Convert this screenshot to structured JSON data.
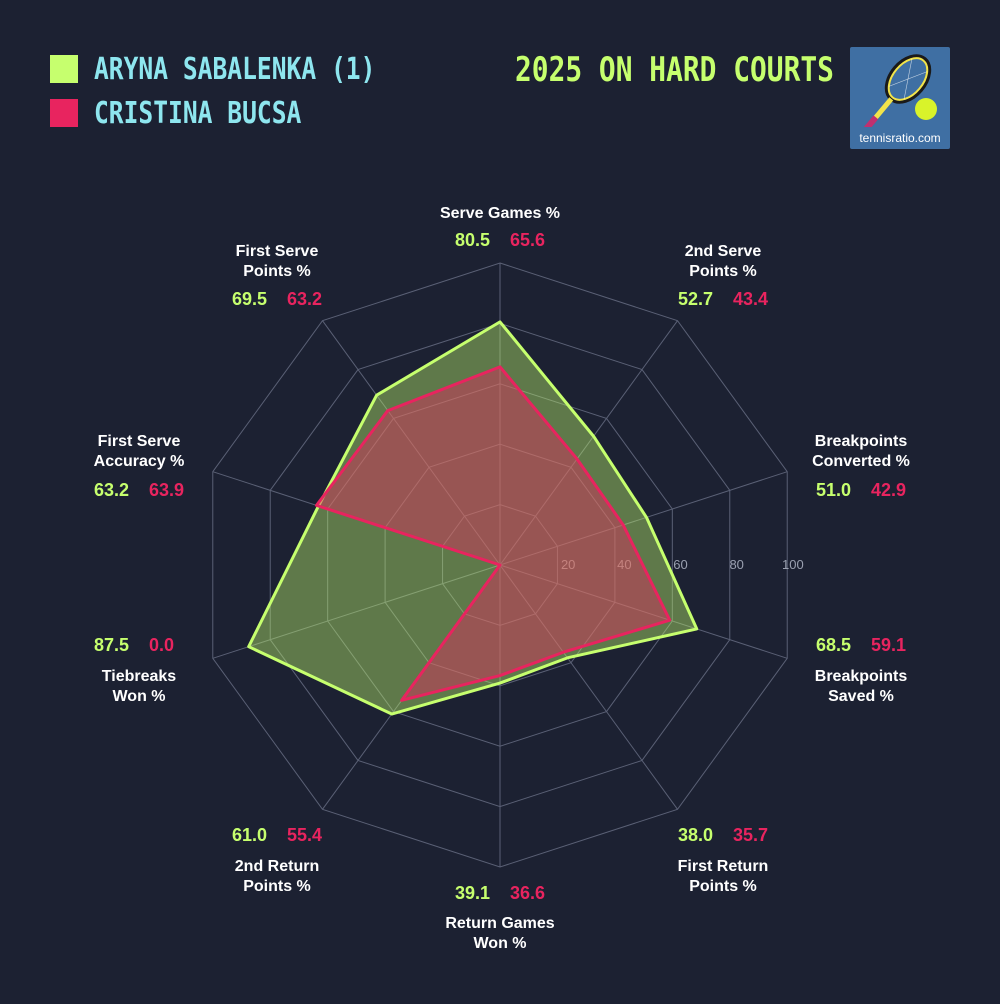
{
  "title": "2025 ON HARD COURTS",
  "logo": {
    "text": "tennisratio.com",
    "icon": "racket-ball-icon"
  },
  "colors": {
    "background": "#1c2132",
    "player1": "#c6ff6e",
    "player2": "#e8245f",
    "legend_text": "#8ee6ef",
    "grid": "#5a6075",
    "tick_text": "#9aa0b0"
  },
  "chart_data": {
    "type": "radar",
    "rlim": [
      0,
      100
    ],
    "ticks": [
      "20",
      "40",
      "60",
      "80",
      "100"
    ],
    "categories": [
      [
        "Serve Games %"
      ],
      [
        "2nd Serve",
        "Points %"
      ],
      [
        "Breakpoints",
        "Converted %"
      ],
      [
        "Breakpoints",
        "Saved %"
      ],
      [
        "First Return",
        "Points %"
      ],
      [
        "Return Games",
        "Won %"
      ],
      [
        "2nd Return",
        "Points %"
      ],
      [
        "Tiebreaks",
        "Won %"
      ],
      [
        "First Serve",
        "Accuracy %"
      ],
      [
        "First Serve",
        "Points %"
      ]
    ],
    "series": [
      {
        "name": "ARYNA SABALENKA (1)",
        "values": [
          80.5,
          52.7,
          51.0,
          68.5,
          38.0,
          39.1,
          61.0,
          87.5,
          63.2,
          69.5
        ],
        "labels": [
          "80.5",
          "52.7",
          "51.0",
          "68.5",
          "38.0",
          "39.1",
          "61.0",
          "87.5",
          "63.2",
          "69.5"
        ]
      },
      {
        "name": "CRISTINA BUCSA",
        "values": [
          65.6,
          43.4,
          42.9,
          59.1,
          35.7,
          36.6,
          55.4,
          0.0,
          63.9,
          63.2
        ],
        "labels": [
          "65.6",
          "43.4",
          "42.9",
          "59.1",
          "35.7",
          "36.6",
          "55.4",
          "0.0",
          "63.9",
          "63.2"
        ]
      }
    ]
  }
}
